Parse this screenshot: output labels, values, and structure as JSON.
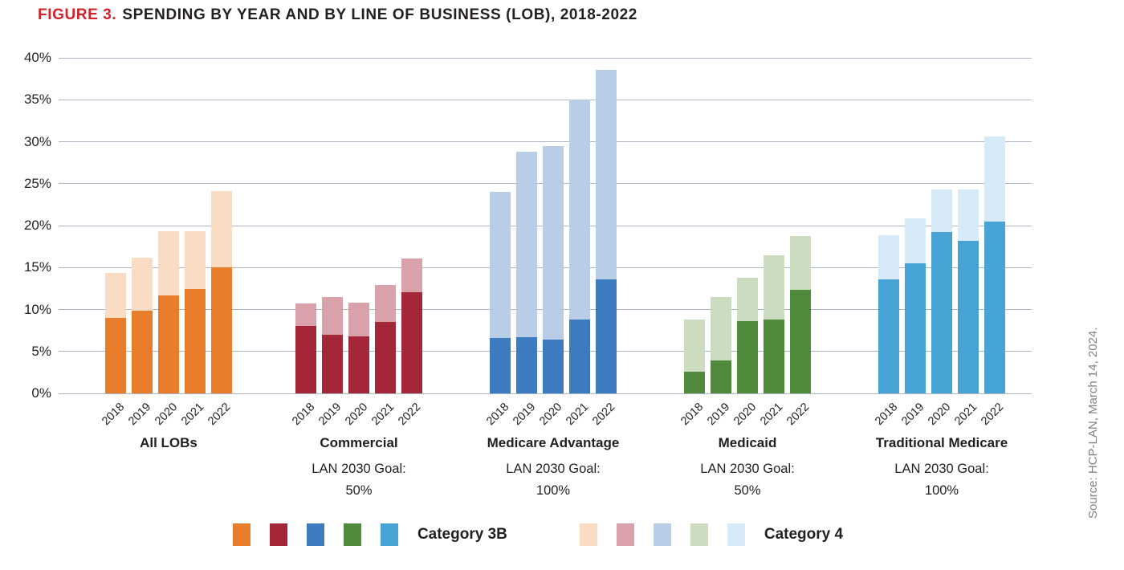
{
  "title": {
    "prefix": "FIGURE 3.",
    "text": "SPENDING BY YEAR AND BY LINE OF BUSINESS (LOB), 2018-2022",
    "prefix_color": "#d2232a",
    "text_color": "#231f20"
  },
  "source_note": "Source: HCP-LAN, March 14, 2024.",
  "legend": {
    "cat3b_label": "Category 3B",
    "cat4_label": "Category 4"
  },
  "chart_data": {
    "type": "bar",
    "stacked": true,
    "title": "FIGURE 3. SPENDING BY YEAR AND BY LINE OF BUSINESS (LOB), 2018-2022",
    "ylabel": "",
    "ylim": [
      0,
      40
    ],
    "ytick_step": 5,
    "ytick_suffix": "%",
    "grid": true,
    "legend_position": "bottom",
    "stack_series": [
      "Category 3B",
      "Category 4"
    ],
    "years": [
      "2018",
      "2019",
      "2020",
      "2021",
      "2022"
    ],
    "groups": [
      {
        "label": "All LOBs",
        "goal_line1": "",
        "goal_line2": "",
        "color_cat3b": "#e87e2b",
        "color_cat4": "#fadcc2",
        "category_3b": [
          9.0,
          9.9,
          11.7,
          12.4,
          15.0
        ],
        "category_4": [
          5.4,
          6.3,
          7.6,
          6.9,
          9.1
        ],
        "totals": [
          14.4,
          16.2,
          19.3,
          19.3,
          24.1
        ]
      },
      {
        "label": "Commercial",
        "goal_line1": "LAN 2030 Goal:",
        "goal_line2": "50%",
        "color_cat3b": "#a32639",
        "color_cat4": "#d9a1aa",
        "category_3b": [
          8.0,
          7.0,
          6.8,
          8.5,
          12.1
        ],
        "category_4": [
          2.7,
          4.5,
          4.0,
          4.4,
          4.0
        ],
        "totals": [
          10.7,
          11.5,
          10.8,
          12.9,
          16.1
        ]
      },
      {
        "label": "Medicare Advantage",
        "goal_line1": "LAN 2030 Goal:",
        "goal_line2": "100%",
        "color_cat3b": "#3d7bc0",
        "color_cat4": "#b9cde6",
        "category_3b": [
          6.6,
          6.7,
          6.4,
          8.8,
          13.6
        ],
        "category_4": [
          17.4,
          22.1,
          23.1,
          26.2,
          25.0
        ],
        "totals": [
          24.0,
          28.8,
          29.5,
          35.0,
          38.6
        ]
      },
      {
        "label": "Medicaid",
        "goal_line1": "LAN 2030 Goal:",
        "goal_line2": "50%",
        "color_cat3b": "#4f8a3d",
        "color_cat4": "#cbdcc0",
        "category_3b": [
          2.6,
          3.9,
          8.6,
          8.8,
          12.3
        ],
        "category_4": [
          6.2,
          7.6,
          5.2,
          7.7,
          6.5
        ],
        "totals": [
          8.8,
          11.5,
          13.8,
          16.5,
          18.8
        ]
      },
      {
        "label": "Traditional Medicare",
        "goal_line1": "LAN 2030 Goal:",
        "goal_line2": "100%",
        "color_cat3b": "#47a2d5",
        "color_cat4": "#d6eaf7",
        "category_3b": [
          13.6,
          15.5,
          19.2,
          18.2,
          20.5
        ],
        "category_4": [
          5.3,
          5.4,
          5.1,
          6.1,
          10.1
        ],
        "totals": [
          18.9,
          20.9,
          24.3,
          24.3,
          30.6
        ]
      }
    ]
  }
}
